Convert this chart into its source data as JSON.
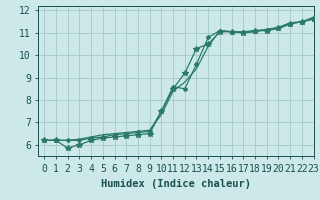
{
  "xlabel": "Humidex (Indice chaleur)",
  "bg_color": "#cce8e8",
  "grid_color": "#aacccc",
  "line_color1": "#2a7a6a",
  "line_color2": "#2a7a6a",
  "line_color3": "#2a7a6a",
  "xlim": [
    -0.5,
    23
  ],
  "ylim": [
    5.5,
    12.2
  ],
  "xticks": [
    0,
    1,
    2,
    3,
    4,
    5,
    6,
    7,
    8,
    9,
    10,
    11,
    12,
    13,
    14,
    15,
    16,
    17,
    18,
    19,
    20,
    21,
    22,
    23
  ],
  "yticks": [
    6,
    7,
    8,
    9,
    10,
    11,
    12
  ],
  "series1_x": [
    0,
    1,
    2,
    3,
    4,
    5,
    6,
    7,
    8,
    9,
    10,
    11,
    12,
    13,
    14,
    15,
    16,
    17,
    18,
    19,
    20,
    21,
    22,
    23
  ],
  "series1_y": [
    6.2,
    6.2,
    5.85,
    6.0,
    6.2,
    6.3,
    6.35,
    6.4,
    6.45,
    6.5,
    7.5,
    8.5,
    9.2,
    10.3,
    10.5,
    11.05,
    11.05,
    11.0,
    11.1,
    11.1,
    11.2,
    11.4,
    11.5,
    11.6
  ],
  "series2_x": [
    0,
    1,
    2,
    3,
    4,
    5,
    6,
    7,
    8,
    9,
    10,
    11,
    12,
    13,
    14,
    15,
    16,
    17,
    18,
    19,
    20,
    21,
    22,
    23
  ],
  "series2_y": [
    6.2,
    6.2,
    6.2,
    6.2,
    6.3,
    6.35,
    6.45,
    6.5,
    6.55,
    6.6,
    7.5,
    8.6,
    8.5,
    9.6,
    10.8,
    11.1,
    11.05,
    11.05,
    11.1,
    11.15,
    11.2,
    11.4,
    11.5,
    11.65
  ],
  "series3_x": [
    0,
    1,
    2,
    3,
    4,
    5,
    6,
    7,
    8,
    9,
    10,
    11,
    12,
    13,
    14,
    15,
    16,
    17,
    18,
    19,
    20,
    21,
    22,
    23
  ],
  "series3_y": [
    6.2,
    6.2,
    6.2,
    6.25,
    6.35,
    6.45,
    6.5,
    6.55,
    6.6,
    6.65,
    7.35,
    8.4,
    8.8,
    9.4,
    10.4,
    11.1,
    11.05,
    11.0,
    11.05,
    11.15,
    11.25,
    11.45,
    11.5,
    11.7
  ],
  "font_color": "#1a5050",
  "font_size": 7,
  "xlabel_fontsize": 7.5
}
